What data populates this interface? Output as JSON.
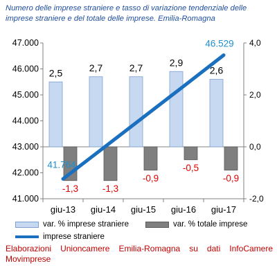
{
  "title": "Numero delle imprese straniere e tasso di variazione tendenziale delle imprese straniere e del totale delle imprese. Emilia-Romagna",
  "source": "Elaborazioni Unioncamere Emilia-Romagna su dati InfoCamere Movimprese",
  "colors": {
    "title": "#1f4e9c",
    "bar_stranieri_fill": "#c6d9f1",
    "bar_stranieri_stroke": "#7f9fcf",
    "bar_totale_fill": "#7f7f7f",
    "bar_totale_stroke": "#595959",
    "line": "#1a6fbf",
    "neg_label": "#e00000",
    "line_label": "#1f8fd0",
    "source": "#c00000"
  },
  "chart_data": {
    "type": "bar+line",
    "categories": [
      "giu-13",
      "giu-14",
      "giu-15",
      "giu-16",
      "giu-17"
    ],
    "left_axis": {
      "min": 41000,
      "max": 47000,
      "ticks": [
        "41.000",
        "42.000",
        "43.000",
        "44.000",
        "45.000",
        "46.000",
        "47.000"
      ]
    },
    "right_axis": {
      "min": -2.0,
      "max": 4.0,
      "ticks": [
        "-2,0",
        "0,0",
        "2,0",
        "4,0"
      ]
    },
    "series": [
      {
        "name": "var. % imprese straniere",
        "type": "bar",
        "axis": "right",
        "values": [
          2.5,
          2.7,
          2.7,
          2.9,
          2.6
        ],
        "labels": [
          "2,5",
          "2,7",
          "2,7",
          "2,9",
          "2,6"
        ]
      },
      {
        "name": "var. % totale imprese",
        "type": "bar",
        "axis": "right",
        "values": [
          -1.3,
          -1.3,
          -0.9,
          -0.5,
          -0.9
        ],
        "labels": [
          "-1,3",
          "-1,3",
          "-0,9",
          "-0,5",
          "-0,9"
        ]
      },
      {
        "name": "imprese straniere",
        "type": "line",
        "axis": "left",
        "values": [
          41764,
          42950,
          44140,
          45330,
          46529
        ],
        "labels": [
          "41.764",
          "",
          "",
          "",
          "46.529"
        ]
      }
    ],
    "legend": [
      "var. % imprese straniere",
      "var. % totale imprese",
      "imprese straniere"
    ],
    "legend_position": "bottom",
    "grid": false
  }
}
